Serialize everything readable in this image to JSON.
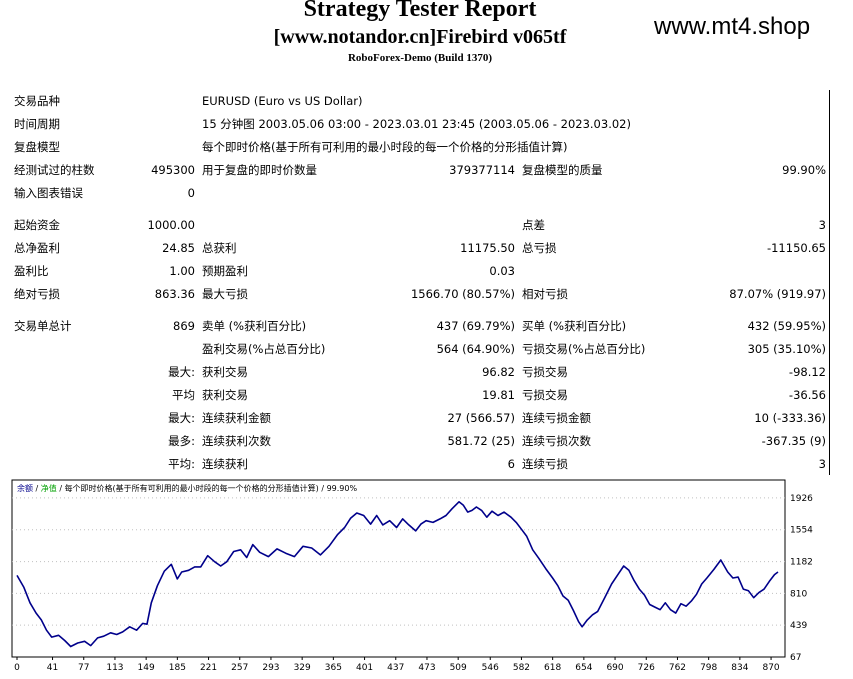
{
  "header": {
    "title": "Strategy Tester Report",
    "subtitle": "[www.notandor.cn]Firebird v065tf",
    "server": "RoboForex-Demo (Build 1370)",
    "watermark": "www.mt4.shop"
  },
  "summary": {
    "symbol_label": "交易品种",
    "symbol_value": "EURUSD (Euro vs US Dollar)",
    "period_label": "时间周期",
    "period_value": "15 分钟图 2003.05.06 03:00 - 2023.03.01 23:45 (2003.05.06 - 2023.03.02)",
    "model_label": "复盘模型",
    "model_value": "每个即时价格(基于所有可利用的最小时段的每一个价格的分形插值计算)",
    "bars_label": "经测试过的柱数",
    "bars_value": "495300",
    "ticks_label": "用于复盘的即时价数量",
    "ticks_value": "379377114",
    "quality_label": "复盘模型的质量",
    "quality_value": "99.90%",
    "errors_label": "输入图表错误",
    "errors_value": "0",
    "deposit_label": "起始资金",
    "deposit_value": "1000.00",
    "spread_label": "点差",
    "spread_value": "3",
    "net_label": "总净盈利",
    "net_value": "24.85",
    "gross_profit_label": "总获利",
    "gross_profit_value": "11175.50",
    "gross_loss_label": "总亏损",
    "gross_loss_value": "-11150.65",
    "pf_label": "盈利比",
    "pf_value": "1.00",
    "payoff_label": "预期盈利",
    "payoff_value": "0.03",
    "abs_dd_label": "绝对亏损",
    "abs_dd_value": "863.36",
    "max_dd_label": "最大亏损",
    "max_dd_value": "1566.70 (80.57%)",
    "rel_dd_label": "相对亏损",
    "rel_dd_value": "87.07% (919.97)",
    "trades_label": "交易单总计",
    "trades_value": "869",
    "short_label": "卖单 (%获利百分比)",
    "short_value": "437 (69.79%)",
    "long_label": "买单 (%获利百分比)",
    "long_value": "432 (59.95%)",
    "profit_trades_label": "盈利交易(%占总百分比)",
    "profit_trades_value": "564 (64.90%)",
    "loss_trades_label": "亏损交易(%占总百分比)",
    "loss_trades_value": "305 (35.10%)",
    "largest_prefix": "最大:",
    "largest_profit_label": "获利交易",
    "largest_profit_value": "96.82",
    "largest_loss_label": "亏损交易",
    "largest_loss_value": "-98.12",
    "avg_prefix": "平均",
    "avg_profit_label": "获利交易",
    "avg_profit_value": "19.81",
    "avg_loss_label": "亏损交易",
    "avg_loss_value": "-36.56",
    "max_cons_prefix": "最大:",
    "max_cons_wins_label": "连续获利金额",
    "max_cons_wins_value": "27 (566.57)",
    "max_cons_losses_label": "连续亏损金额",
    "max_cons_losses_value": "10 (-333.36)",
    "most_prefix": "最多:",
    "max_cons_profit_label": "连续获利次数",
    "max_cons_profit_value": "581.72 (25)",
    "max_cons_loss_label": "连续亏损次数",
    "max_cons_loss_value": "-367.35 (9)",
    "avg_cons_prefix": "平均:",
    "avg_cons_wins_label": "连续获利",
    "avg_cons_wins_value": "6",
    "avg_cons_losses_label": "连续亏损",
    "avg_cons_losses_value": "3"
  },
  "chart_data": {
    "type": "line",
    "legend_balance": "余额",
    "legend_sep1": " / ",
    "legend_equity": "净值",
    "legend_rest": " / 每个即时价格(基于所有可利用的最小时段的每一个价格的分形插值计算) / 99.90%",
    "colors": {
      "line": "#00008b",
      "balance_label": "#00008b",
      "equity_label": "#00a000",
      "grid": "#c0c0c0"
    },
    "xlim": [
      0,
      878
    ],
    "ylim": [
      67,
      2100
    ],
    "x_ticks": [
      0,
      41,
      77,
      113,
      149,
      185,
      221,
      257,
      293,
      329,
      365,
      401,
      437,
      473,
      509,
      546,
      582,
      618,
      654,
      690,
      726,
      762,
      798,
      834,
      870
    ],
    "y_ticks": [
      67,
      439,
      810,
      1182,
      1554,
      1926
    ],
    "series": [
      {
        "x": [
          0,
          8,
          15,
          22,
          28,
          34,
          40,
          48,
          55,
          62,
          70,
          78,
          85,
          93,
          100,
          108,
          115,
          122,
          130,
          138,
          145,
          150,
          155,
          162,
          170,
          178,
          185,
          190,
          198,
          205,
          212,
          220,
          228,
          235,
          242,
          250,
          258,
          265,
          272,
          280,
          290,
          300,
          310,
          320,
          330,
          340,
          350,
          360,
          370,
          378,
          385,
          392,
          400,
          408,
          415,
          422,
          430,
          438,
          445,
          452,
          460,
          466,
          472,
          480,
          488,
          495,
          502,
          510,
          515,
          520,
          525,
          530,
          536,
          542,
          548,
          555,
          562,
          570,
          576,
          582,
          588,
          595,
          602,
          610,
          618,
          624,
          630,
          636,
          642,
          648,
          652,
          658,
          664,
          670,
          678,
          686,
          694,
          700,
          706,
          712,
          718,
          724,
          730,
          736,
          742,
          748,
          754,
          760,
          766,
          772,
          778,
          784,
          790,
          796,
          804,
          812,
          820,
          826,
          832,
          838,
          844,
          850,
          856,
          862,
          868,
          874,
          878
        ],
        "y": [
          1020,
          880,
          700,
          580,
          500,
          380,
          300,
          320,
          260,
          190,
          230,
          250,
          200,
          290,
          310,
          350,
          330,
          360,
          420,
          380,
          460,
          450,
          700,
          900,
          1070,
          1150,
          980,
          1060,
          1080,
          1120,
          1120,
          1250,
          1180,
          1130,
          1180,
          1300,
          1320,
          1230,
          1380,
          1290,
          1240,
          1330,
          1280,
          1240,
          1360,
          1340,
          1260,
          1360,
          1500,
          1580,
          1690,
          1750,
          1720,
          1620,
          1720,
          1610,
          1660,
          1580,
          1680,
          1610,
          1540,
          1620,
          1660,
          1640,
          1680,
          1720,
          1800,
          1880,
          1840,
          1760,
          1780,
          1820,
          1780,
          1700,
          1770,
          1720,
          1760,
          1700,
          1640,
          1560,
          1480,
          1320,
          1220,
          1100,
          990,
          900,
          780,
          730,
          610,
          480,
          420,
          500,
          560,
          600,
          760,
          920,
          1040,
          1130,
          1080,
          960,
          860,
          790,
          680,
          650,
          620,
          700,
          620,
          580,
          690,
          660,
          720,
          800,
          920,
          990,
          1090,
          1200,
          1060,
          990,
          1000,
          860,
          840,
          760,
          820,
          860,
          950,
          1030,
          1060
        ]
      }
    ]
  }
}
